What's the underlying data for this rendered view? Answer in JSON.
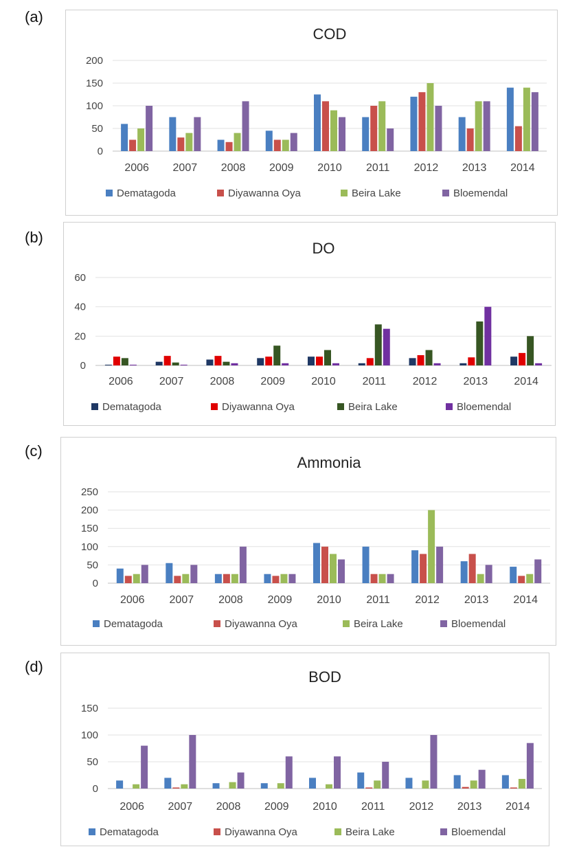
{
  "panel_labels": [
    "(a)",
    "(b)",
    "(c)",
    "(d)"
  ],
  "legend": [
    "Dematagoda",
    "Diyawanna Oya",
    "Beira Lake",
    "Bloemendal"
  ],
  "chart_data": [
    {
      "type": "bar",
      "title": "COD",
      "xlabel": "",
      "ylabel": "",
      "categories": [
        "2006",
        "2007",
        "2008",
        "2009",
        "2010",
        "2011",
        "2012",
        "2013",
        "2014"
      ],
      "ylim": [
        0,
        200
      ],
      "yticks": [
        0,
        50,
        100,
        150,
        200
      ],
      "grid": true,
      "legend_position": "bottom",
      "colors": [
        "#4a7fc1",
        "#c8504b",
        "#9bbb59",
        "#8064a2"
      ],
      "series": [
        {
          "name": "Dematagoda",
          "values": [
            60,
            75,
            25,
            45,
            125,
            75,
            120,
            75,
            140
          ]
        },
        {
          "name": "Diyawanna Oya",
          "values": [
            25,
            30,
            20,
            25,
            110,
            100,
            130,
            50,
            55
          ]
        },
        {
          "name": "Beira Lake",
          "values": [
            50,
            40,
            40,
            25,
            90,
            110,
            150,
            110,
            140
          ]
        },
        {
          "name": "Bloemendal",
          "values": [
            100,
            75,
            110,
            40,
            75,
            50,
            100,
            110,
            130
          ]
        }
      ]
    },
    {
      "type": "bar",
      "title": "DO",
      "xlabel": "",
      "ylabel": "",
      "categories": [
        "2006",
        "2007",
        "2008",
        "2009",
        "2010",
        "2011",
        "2012",
        "2013",
        "2014"
      ],
      "ylim": [
        0,
        60
      ],
      "yticks": [
        0,
        20,
        40,
        60
      ],
      "grid": true,
      "legend_position": "bottom",
      "colors": [
        "#1f3864",
        "#e00000",
        "#375623",
        "#7030a0"
      ],
      "series": [
        {
          "name": "Dematagoda",
          "values": [
            0.5,
            2.5,
            4,
            5,
            6,
            1.5,
            5,
            1.5,
            6
          ]
        },
        {
          "name": "Diyawanna Oya",
          "values": [
            6,
            6.5,
            6.5,
            6,
            6,
            5,
            7,
            5.5,
            8.5
          ]
        },
        {
          "name": "Beira Lake",
          "values": [
            5,
            2,
            2.5,
            13.5,
            10.5,
            28,
            10.5,
            30,
            20
          ]
        },
        {
          "name": "Bloemendal",
          "values": [
            0.5,
            0.5,
            1.5,
            1.5,
            1.5,
            25,
            1.5,
            40,
            1.5
          ]
        }
      ]
    },
    {
      "type": "bar",
      "title": "Ammonia",
      "xlabel": "",
      "ylabel": "",
      "categories": [
        "2006",
        "2007",
        "2008",
        "2009",
        "2010",
        "2011",
        "2012",
        "2013",
        "2014"
      ],
      "ylim": [
        0,
        250
      ],
      "yticks": [
        0,
        50,
        100,
        150,
        200,
        250
      ],
      "grid": true,
      "legend_position": "bottom",
      "colors": [
        "#4a7fc1",
        "#c8504b",
        "#9bbb59",
        "#8064a2"
      ],
      "series": [
        {
          "name": "Dematagoda",
          "values": [
            40,
            55,
            25,
            25,
            110,
            100,
            90,
            60,
            45
          ]
        },
        {
          "name": "Diyawanna Oya",
          "values": [
            20,
            20,
            25,
            20,
            100,
            25,
            80,
            80,
            20
          ]
        },
        {
          "name": "Beira Lake",
          "values": [
            25,
            25,
            25,
            25,
            80,
            25,
            200,
            25,
            25
          ]
        },
        {
          "name": "Bloemendal",
          "values": [
            50,
            50,
            100,
            25,
            65,
            25,
            100,
            50,
            65
          ]
        }
      ]
    },
    {
      "type": "bar",
      "title": "BOD",
      "xlabel": "",
      "ylabel": "",
      "categories": [
        "2006",
        "2007",
        "2008",
        "2009",
        "2010",
        "2011",
        "2012",
        "2013",
        "2014"
      ],
      "ylim": [
        0,
        150
      ],
      "yticks": [
        0,
        50,
        100,
        150
      ],
      "grid": true,
      "legend_position": "bottom",
      "colors": [
        "#4a7fc1",
        "#c8504b",
        "#9bbb59",
        "#8064a2"
      ],
      "series": [
        {
          "name": "Dematagoda",
          "values": [
            15,
            20,
            10,
            10,
            20,
            30,
            20,
            25,
            25
          ]
        },
        {
          "name": "Diyawanna Oya",
          "values": [
            0,
            2,
            0,
            0,
            0,
            2,
            0,
            3,
            2
          ]
        },
        {
          "name": "Beira Lake",
          "values": [
            8,
            8,
            12,
            10,
            8,
            15,
            15,
            15,
            18
          ]
        },
        {
          "name": "Bloemendal",
          "values": [
            80,
            100,
            30,
            60,
            60,
            50,
            100,
            35,
            85
          ]
        }
      ]
    }
  ]
}
